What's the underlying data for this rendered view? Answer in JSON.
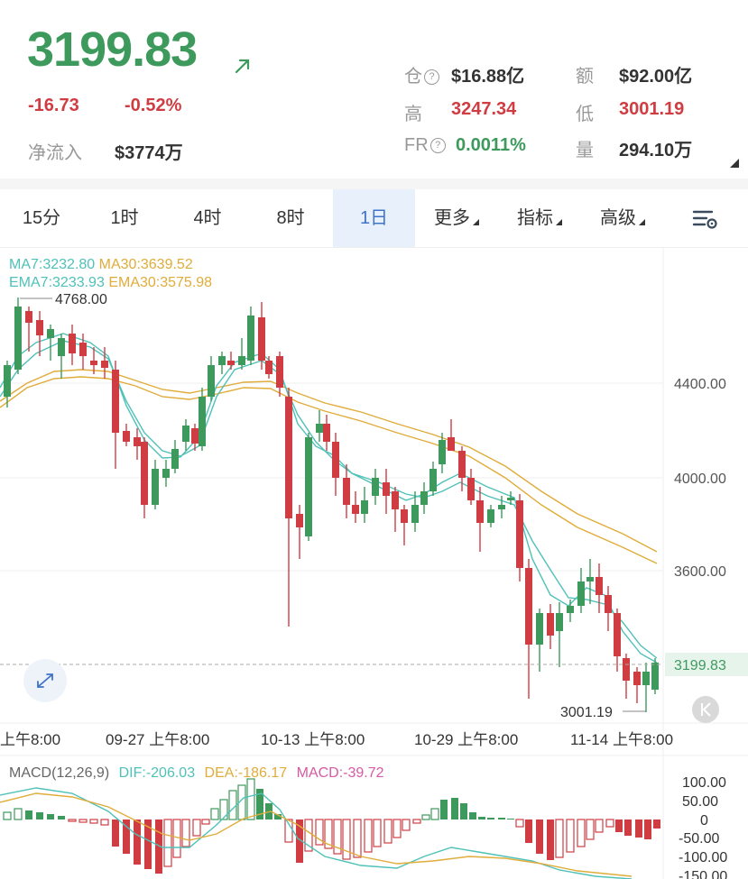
{
  "header": {
    "price": "3199.83",
    "change": "-16.73",
    "change_pct": "-0.52%",
    "net_inflow_label": "净流入",
    "net_inflow_value": "$3774万",
    "stats": {
      "oi_label": "仓",
      "oi_value": "$16.88亿",
      "turnover_label": "额",
      "turnover_value": "$92.00亿",
      "high_label": "高",
      "high_value": "3247.34",
      "low_label": "低",
      "low_value": "3001.19",
      "fr_label": "FR",
      "fr_value": "0.0011%",
      "volume_label": "量",
      "volume_value": "294.10万"
    }
  },
  "tabs": [
    {
      "label": "15分"
    },
    {
      "label": "1时"
    },
    {
      "label": "4时"
    },
    {
      "label": "8时"
    },
    {
      "label": "1日"
    },
    {
      "label": "更多"
    },
    {
      "label": "指标"
    },
    {
      "label": "高级"
    }
  ],
  "active_tab": "1日",
  "legend": {
    "ma7": "MA7:3232.80",
    "ma30": "MA30:3639.52",
    "ema7": "EMA7:3233.93",
    "ema30": "EMA30:3575.98"
  },
  "price_axis": {
    "ticks": [
      "4400.00",
      "4000.00",
      "3600.00"
    ],
    "current": "3199.83"
  },
  "annotations": {
    "max_label": "4768.00",
    "min_label": "3001.19"
  },
  "date_axis": [
    "上午8:00",
    "09-27 上午8:00",
    "10-13 上午8:00",
    "10-29 上午8:00",
    "11-14 上午8:00"
  ],
  "macd": {
    "title": "MACD(12,26,9)",
    "dif": "DIF:-206.03",
    "dea": "DEA:-186.17",
    "macd": "MACD:-39.72",
    "ticks": [
      "100.00",
      "50.00",
      "0",
      "-50.00",
      "-100.00",
      "-150.00"
    ]
  },
  "colors": {
    "up": "#3e9a5c",
    "down": "#cf3d43",
    "ma7": "#4fc1b8",
    "ma30": "#e0ac3a",
    "active_tab": "#3f73c9"
  },
  "icons": [
    "trend-up-arrow-icon",
    "question-circle-icon",
    "dropdown-corner-icon",
    "chart-settings-icon",
    "fullscreen-expand-icon",
    "scroll-to-latest-icon"
  ]
}
